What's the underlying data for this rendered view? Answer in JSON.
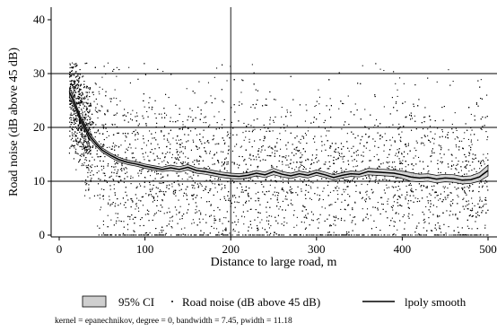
{
  "chart_data": {
    "type": "scatter",
    "title": "",
    "xlabel": "Distance to large road, m",
    "ylabel": "Road noise (dB above 45 dB)",
    "xlim": [
      0,
      510
    ],
    "ylim": [
      -1,
      42
    ],
    "xticks": [
      0,
      100,
      200,
      300,
      400,
      500
    ],
    "yticks": [
      0,
      10,
      20,
      30,
      40
    ],
    "reference_lines": {
      "x": 200,
      "y": [
        10,
        20,
        30
      ]
    },
    "grid": false,
    "legend_position": "bottom",
    "legend": [
      {
        "label": "95% CI",
        "kind": "area"
      },
      {
        "label": "Road noise (dB above 45 dB)",
        "kind": "points"
      },
      {
        "label": "lpoly smooth",
        "kind": "line"
      }
    ],
    "note": "kernel = epanechnikov, degree = 0, bandwidth = 7.45, pwidth = 11.18",
    "series": [
      {
        "name": "lpoly smooth",
        "type": "line",
        "x": [
          12,
          15,
          20,
          25,
          30,
          35,
          40,
          45,
          50,
          60,
          70,
          80,
          90,
          100,
          110,
          120,
          130,
          140,
          150,
          160,
          170,
          180,
          190,
          200,
          210,
          220,
          230,
          240,
          250,
          260,
          270,
          280,
          290,
          300,
          310,
          320,
          330,
          340,
          350,
          360,
          370,
          380,
          390,
          400,
          410,
          420,
          430,
          440,
          450,
          460,
          470,
          480,
          490,
          500
        ],
        "values": [
          26.5,
          25.5,
          23.5,
          21.5,
          20.0,
          18.5,
          17.5,
          16.6,
          15.8,
          14.8,
          14.0,
          13.5,
          13.2,
          12.8,
          12.5,
          12.2,
          12.5,
          12.2,
          12.6,
          12.0,
          11.8,
          11.5,
          11.2,
          11.0,
          10.9,
          11.1,
          11.5,
          11.2,
          11.8,
          11.3,
          11.0,
          11.4,
          11.1,
          11.6,
          11.2,
          10.7,
          11.1,
          11.4,
          11.3,
          11.8,
          11.7,
          11.6,
          11.5,
          11.2,
          10.8,
          10.6,
          10.7,
          10.4,
          10.6,
          10.5,
          10.2,
          10.3,
          10.8,
          12.0
        ]
      },
      {
        "name": "95% CI",
        "type": "area",
        "x": [
          12,
          15,
          20,
          25,
          30,
          35,
          40,
          45,
          50,
          60,
          70,
          80,
          90,
          100,
          110,
          120,
          130,
          140,
          150,
          160,
          170,
          180,
          190,
          200,
          210,
          220,
          230,
          240,
          250,
          260,
          270,
          280,
          290,
          300,
          310,
          320,
          330,
          340,
          350,
          360,
          370,
          380,
          390,
          400,
          410,
          420,
          430,
          440,
          450,
          460,
          470,
          480,
          490,
          500
        ],
        "lower": [
          25.6,
          24.8,
          22.9,
          21.0,
          19.5,
          18.0,
          17.0,
          16.2,
          15.4,
          14.4,
          13.6,
          13.1,
          12.8,
          12.4,
          12.1,
          11.8,
          12.0,
          11.7,
          12.1,
          11.5,
          11.3,
          11.0,
          10.7,
          10.5,
          10.4,
          10.6,
          11.0,
          10.7,
          11.2,
          10.8,
          10.5,
          10.9,
          10.6,
          11.1,
          10.7,
          10.2,
          10.6,
          10.9,
          10.8,
          11.2,
          11.1,
          11.0,
          10.9,
          10.5,
          10.0,
          9.9,
          10.0,
          9.7,
          9.9,
          9.8,
          9.5,
          9.6,
          10.0,
          11.0
        ],
        "upper": [
          27.4,
          26.2,
          24.1,
          22.0,
          20.5,
          19.0,
          18.0,
          17.0,
          16.2,
          15.2,
          14.4,
          13.9,
          13.6,
          13.2,
          12.9,
          12.6,
          13.0,
          12.7,
          13.1,
          12.5,
          12.3,
          12.0,
          11.7,
          11.5,
          11.4,
          11.6,
          12.0,
          11.7,
          12.4,
          11.8,
          11.5,
          11.9,
          11.6,
          12.1,
          11.7,
          11.2,
          11.6,
          11.9,
          11.8,
          12.4,
          12.3,
          12.2,
          12.1,
          11.9,
          11.6,
          11.3,
          11.4,
          11.1,
          11.3,
          11.2,
          10.9,
          11.0,
          11.6,
          13.0
        ]
      },
      {
        "name": "Road noise (dB above 45 dB)",
        "type": "scatter",
        "x_range": [
          12,
          500
        ],
        "y_range": [
          0,
          32
        ],
        "n_points": 6000
      }
    ]
  }
}
